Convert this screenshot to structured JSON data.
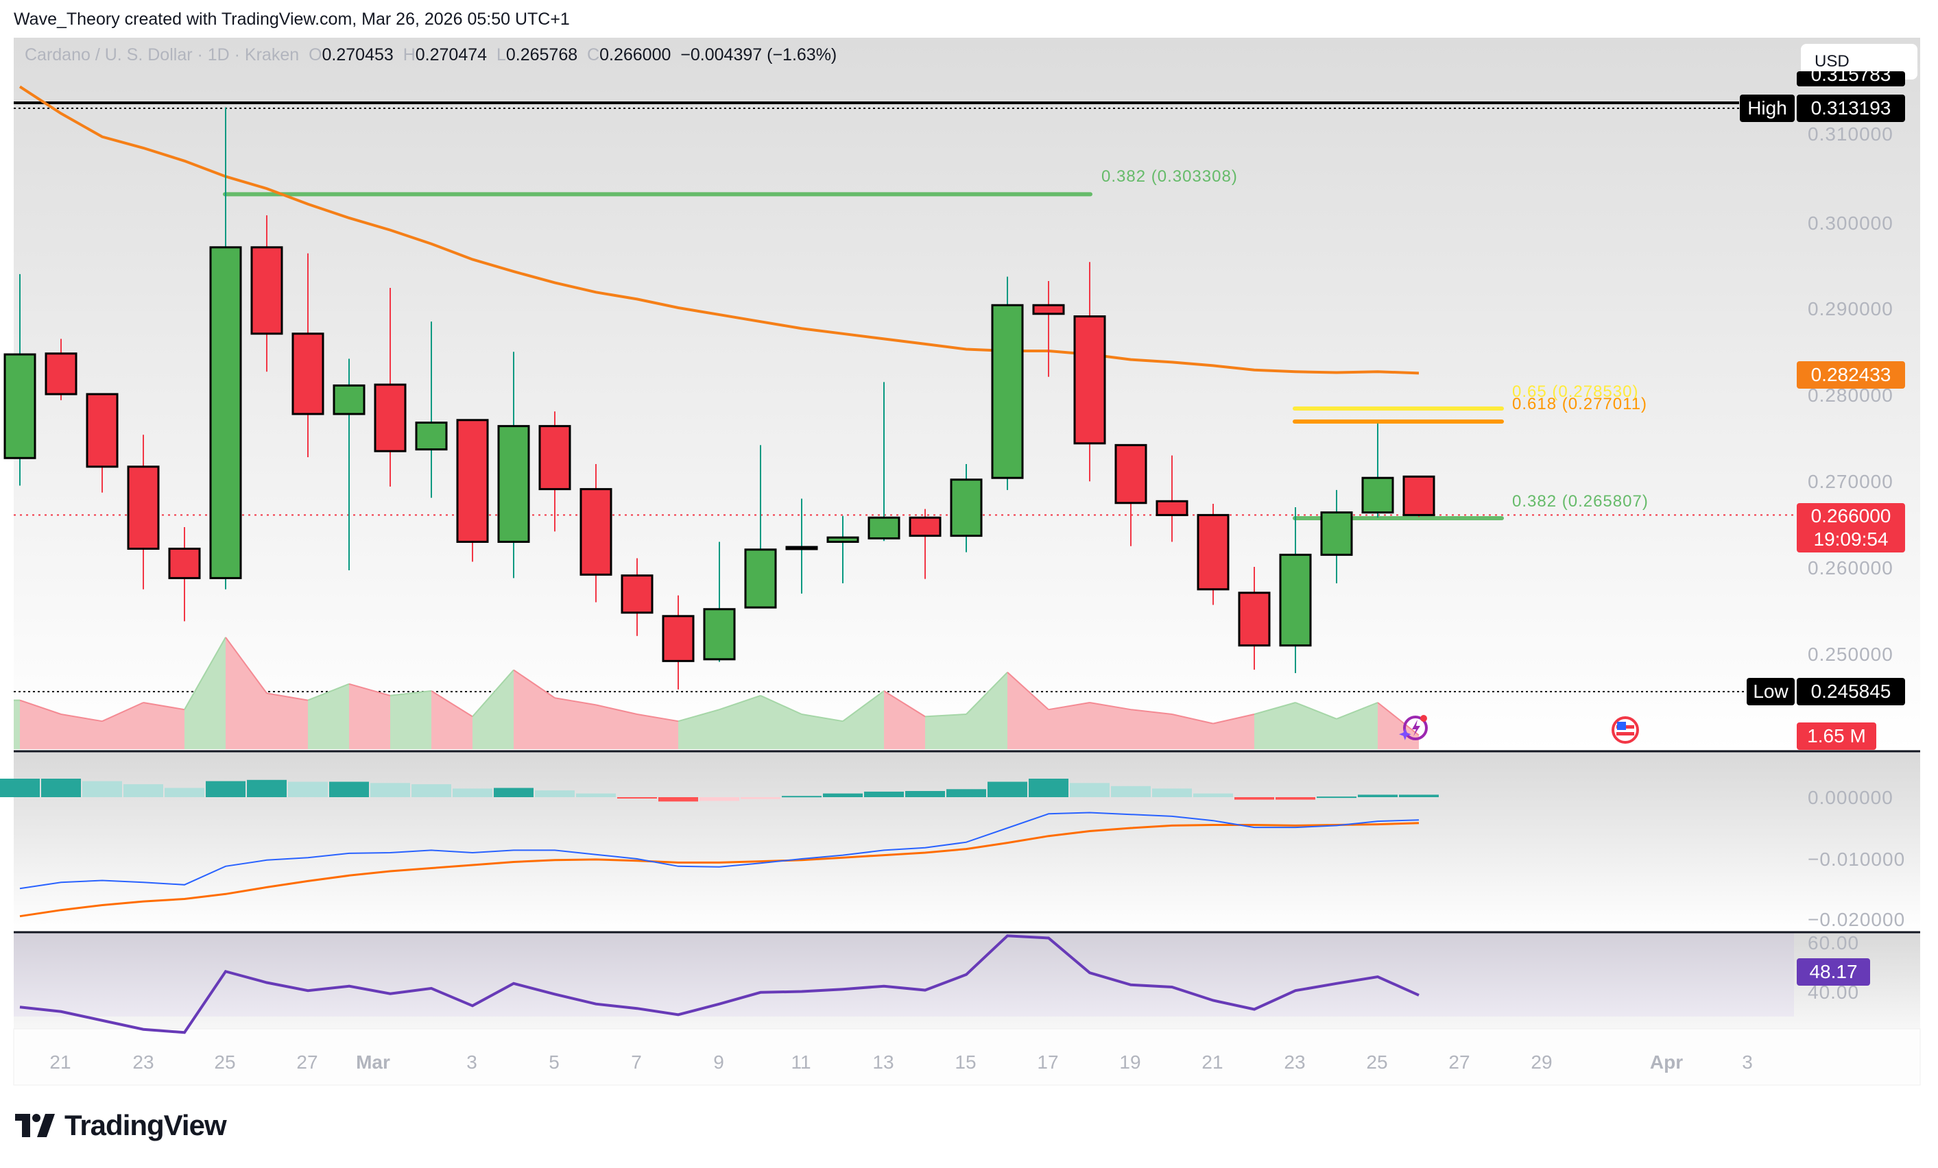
{
  "credit": "Wave_Theory created with TradingView.com, Mar 26, 2026 05:50 UTC+1",
  "legend": {
    "symbol": "Cardano / U. S. Dollar · 1D · Kraken",
    "o_label": "O",
    "open": "0.270453",
    "h_label": "H",
    "high": "0.270474",
    "l_label": "L",
    "low": "0.265768",
    "c_label": "C",
    "close": "0.266000",
    "change": "−0.004397 (−1.63%)"
  },
  "currency": "USD",
  "colors": {
    "up": "#4caf50",
    "down": "#f23645",
    "wick_up": "#089981",
    "wick_down": "#f23645",
    "ema": "#f57f17",
    "fib_382": "#66bb6a",
    "fib_618": "#ff9800",
    "fib_65": "#ffeb3b",
    "macd": "#2962ff",
    "signal": "#ff6d00",
    "rsi": "#673ab7"
  },
  "price_axis": {
    "ticks": [
      "0.310000",
      "0.300000",
      "0.290000",
      "0.280000",
      "0.270000",
      "0.260000",
      "0.250000"
    ],
    "high_label": "High",
    "high_value": "0.313193",
    "hidden_top_value": "0.315783",
    "low_label": "Low",
    "low_value": "0.245845",
    "ema_value": "0.282433",
    "last_price": "0.266000",
    "countdown": "19:09:54",
    "volume_value": "1.65 M"
  },
  "macd_axis": {
    "ticks": [
      "0.000000",
      "−0.010000",
      "−0.020000"
    ]
  },
  "rsi_axis": {
    "ticks": [
      "60.00",
      "40.00"
    ],
    "value": "48.17"
  },
  "fib_levels": [
    {
      "label": "0.382 (0.303308)",
      "price": 0.303308
    },
    {
      "label": "0.65 (0.278530)",
      "price": 0.27853
    },
    {
      "label": "0.618 (0.277011)",
      "price": 0.277011
    },
    {
      "label": "0.382 (0.265807)",
      "price": 0.265807
    }
  ],
  "date_axis": [
    "21",
    "23",
    "25",
    "27",
    "Mar",
    "3",
    "5",
    "7",
    "9",
    "11",
    "13",
    "15",
    "17",
    "19",
    "21",
    "23",
    "25",
    "27",
    "29",
    "Apr",
    "3"
  ],
  "branding": "TradingView",
  "chart_data": {
    "type": "candlestick",
    "title": "Cardano / U. S. Dollar · 1D · Kraken",
    "xlabel": "",
    "ylabel": "USD",
    "ylim": [
      0.2436,
      0.316
    ],
    "grid": false,
    "dates": [
      "Feb 20",
      "Feb 21",
      "Feb 22",
      "Feb 23",
      "Feb 24",
      "Feb 25",
      "Feb 26",
      "Feb 27",
      "Feb 28",
      "Mar 1",
      "Mar 2",
      "Mar 3",
      "Mar 4",
      "Mar 5",
      "Mar 6",
      "Mar 7",
      "Mar 8",
      "Mar 9",
      "Mar 10",
      "Mar 11",
      "Mar 12",
      "Mar 13",
      "Mar 14",
      "Mar 15",
      "Mar 16",
      "Mar 17",
      "Mar 18",
      "Mar 19",
      "Mar 20",
      "Mar 21",
      "Mar 22",
      "Mar 23",
      "Mar 24",
      "Mar 25",
      "Mar 26"
    ],
    "ohlc": [
      [
        0.2726,
        0.2939,
        0.2694,
        0.2846
      ],
      [
        0.2847,
        0.2864,
        0.2793,
        0.28
      ],
      [
        0.28,
        0.28,
        0.2686,
        0.2716
      ],
      [
        0.2716,
        0.2753,
        0.2574,
        0.2621
      ],
      [
        0.2621,
        0.2646,
        0.2537,
        0.2587
      ],
      [
        0.2587,
        0.3132,
        0.2574,
        0.297
      ],
      [
        0.297,
        0.3007,
        0.2826,
        0.287
      ],
      [
        0.287,
        0.2963,
        0.2727,
        0.2777
      ],
      [
        0.2777,
        0.2841,
        0.2596,
        0.281
      ],
      [
        0.2811,
        0.2923,
        0.2693,
        0.2734
      ],
      [
        0.2736,
        0.2884,
        0.268,
        0.2767
      ],
      [
        0.277,
        0.277,
        0.2606,
        0.2629
      ],
      [
        0.2629,
        0.2849,
        0.2587,
        0.2763
      ],
      [
        0.2763,
        0.278,
        0.2641,
        0.269
      ],
      [
        0.269,
        0.2719,
        0.2559,
        0.2591
      ],
      [
        0.259,
        0.261,
        0.252,
        0.2547
      ],
      [
        0.2543,
        0.2567,
        0.2458,
        0.2491
      ],
      [
        0.2493,
        0.2629,
        0.249,
        0.2551
      ],
      [
        0.2553,
        0.2741,
        0.2553,
        0.262
      ],
      [
        0.2621,
        0.2679,
        0.2569,
        0.2623
      ],
      [
        0.2629,
        0.2659,
        0.2581,
        0.2634
      ],
      [
        0.2633,
        0.2814,
        0.263,
        0.2657
      ],
      [
        0.2657,
        0.2667,
        0.2586,
        0.2636
      ],
      [
        0.2636,
        0.2719,
        0.2617,
        0.2701
      ],
      [
        0.2703,
        0.2936,
        0.2689,
        0.2903
      ],
      [
        0.2903,
        0.2931,
        0.282,
        0.2893
      ],
      [
        0.289,
        0.2953,
        0.2699,
        0.2743
      ],
      [
        0.2741,
        0.2741,
        0.2624,
        0.2674
      ],
      [
        0.2676,
        0.2729,
        0.2629,
        0.266
      ],
      [
        0.266,
        0.2673,
        0.2556,
        0.2574
      ],
      [
        0.257,
        0.26,
        0.2481,
        0.2509
      ],
      [
        0.2509,
        0.2669,
        0.2477,
        0.2614
      ],
      [
        0.2614,
        0.2689,
        0.2581,
        0.2663
      ],
      [
        0.2663,
        0.2766,
        0.2657,
        0.2703
      ],
      [
        0.270453,
        0.270474,
        0.265768,
        0.266
      ]
    ],
    "ema": [
      0.3156,
      0.3125,
      0.3098,
      0.3085,
      0.307,
      0.3052,
      0.3038,
      0.302,
      0.3004,
      0.299,
      0.2974,
      0.2956,
      0.2942,
      0.2929,
      0.2918,
      0.291,
      0.29,
      0.2892,
      0.2884,
      0.2876,
      0.287,
      0.2864,
      0.2858,
      0.2852,
      0.285,
      0.285,
      0.2846,
      0.284,
      0.2837,
      0.2833,
      0.2828,
      0.2826,
      0.2825,
      0.2826,
      0.28243
    ],
    "volume_relative": [
      0.42,
      0.3,
      0.24,
      0.4,
      0.34,
      0.96,
      0.48,
      0.42,
      0.56,
      0.46,
      0.5,
      0.28,
      0.68,
      0.44,
      0.38,
      0.3,
      0.24,
      0.34,
      0.46,
      0.3,
      0.24,
      0.5,
      0.28,
      0.3,
      0.66,
      0.34,
      0.4,
      0.34,
      0.3,
      0.22,
      0.3,
      0.4,
      0.26,
      0.4,
      0.12
    ],
    "macd_hist": [
      0.003,
      0.003,
      0.0026,
      0.0021,
      0.0015,
      0.0026,
      0.0028,
      0.0025,
      0.0025,
      0.0023,
      0.0021,
      0.0014,
      0.0015,
      0.0011,
      0.0006,
      -0.0002,
      -0.0007,
      -0.0006,
      -0.0003,
      0.0002,
      0.0006,
      0.0009,
      0.001,
      0.0013,
      0.0025,
      0.003,
      0.0023,
      0.0018,
      0.0014,
      0.0006,
      -0.0004,
      -0.0004,
      0.0001,
      0.0004,
      0.0004
    ],
    "macd_line": [
      -0.0148,
      -0.0138,
      -0.0135,
      -0.0138,
      -0.0142,
      -0.0112,
      -0.0102,
      -0.0098,
      -0.0091,
      -0.009,
      -0.0086,
      -0.009,
      -0.0086,
      -0.0086,
      -0.0093,
      -0.01,
      -0.0112,
      -0.0113,
      -0.0107,
      -0.01,
      -0.0094,
      -0.0086,
      -0.0082,
      -0.0073,
      -0.005,
      -0.0027,
      -0.0025,
      -0.0028,
      -0.0031,
      -0.0038,
      -0.0049,
      -0.0049,
      -0.0046,
      -0.0039,
      -0.0037
    ],
    "signal_line": [
      -0.0193,
      -0.0183,
      -0.0175,
      -0.0169,
      -0.0165,
      -0.0157,
      -0.0146,
      -0.0136,
      -0.0127,
      -0.012,
      -0.0115,
      -0.011,
      -0.0105,
      -0.0102,
      -0.0101,
      -0.0103,
      -0.0106,
      -0.0106,
      -0.0104,
      -0.0102,
      -0.0098,
      -0.0094,
      -0.009,
      -0.0084,
      -0.0074,
      -0.0063,
      -0.0055,
      -0.005,
      -0.0046,
      -0.0045,
      -0.0045,
      -0.0046,
      -0.0045,
      -0.0044,
      -0.0042
    ],
    "rsi": [
      45.5,
      44.5,
      42.5,
      40.5,
      39.8,
      53.5,
      51,
      49.2,
      50.2,
      48.5,
      49.7,
      45.8,
      50.8,
      48.4,
      46.2,
      45.2,
      43.8,
      46.2,
      48.8,
      49,
      49.5,
      50.2,
      49.3,
      52.8,
      61.5,
      61,
      53.2,
      50.5,
      50,
      47,
      45,
      49.2,
      50.8,
      52.3,
      48.17
    ]
  }
}
